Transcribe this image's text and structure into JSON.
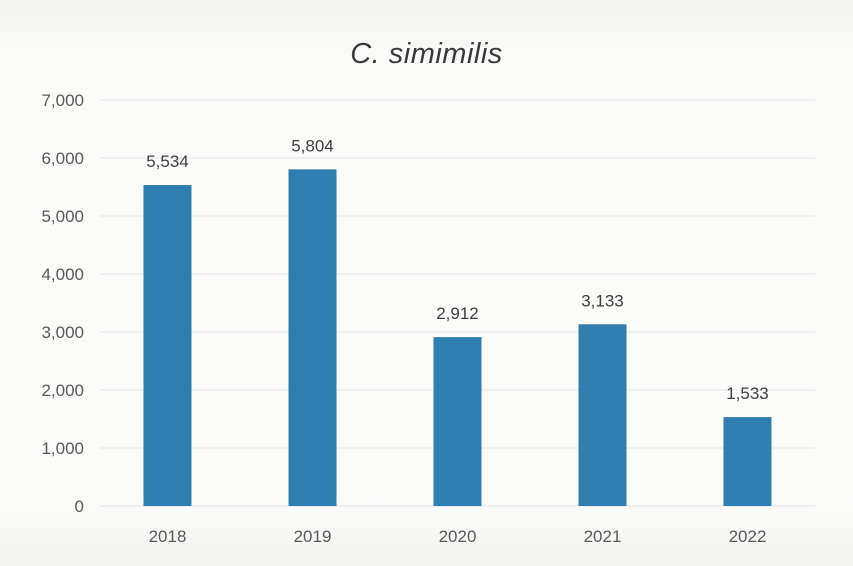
{
  "chart_data": {
    "type": "bar",
    "title": "C. simimilis",
    "categories": [
      "2018",
      "2019",
      "2020",
      "2021",
      "2022"
    ],
    "values": [
      5534,
      5804,
      2912,
      3133,
      1533
    ],
    "value_labels": [
      "5,534",
      "5,804",
      "2,912",
      "3,133",
      "1,533"
    ],
    "yticks": [
      "0",
      "1,000",
      "2,000",
      "3,000",
      "4,000",
      "5,000",
      "6,000",
      "7,000"
    ],
    "ylim": [
      0,
      7000
    ],
    "grid": true,
    "bar_color": "#2e7fb0"
  }
}
